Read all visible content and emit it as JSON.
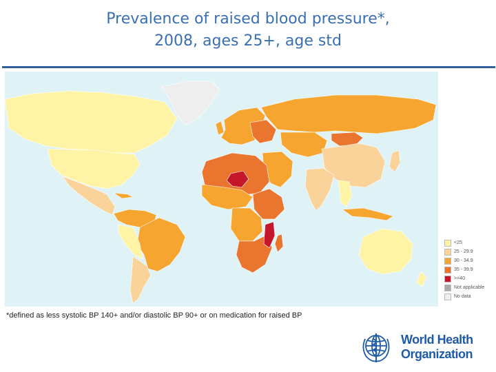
{
  "title": {
    "line1": "Prevalence of raised blood pressure*,",
    "line2": "2008, ages 25+, age std"
  },
  "map": {
    "colors": {
      "ocean": "#dff2f6",
      "land": "#fad39a",
      "level1": "#fff3a6",
      "level2": "#fad39a",
      "level3": "#f5a530",
      "level4": "#e9752f",
      "level5": "#c6162c",
      "not_applicable": "#a9a9a9",
      "no_data": "#eeeeee",
      "border": "#ffffff"
    }
  },
  "legend": {
    "items": [
      {
        "label": "<25",
        "color": "#fff3a6"
      },
      {
        "label": "25 - 29.9",
        "color": "#fad39a"
      },
      {
        "label": "30 - 34.9",
        "color": "#f5a530"
      },
      {
        "label": "35 - 39.9",
        "color": "#e9752f"
      },
      {
        "label": ">=40",
        "color": "#c6162c"
      },
      {
        "label": "Not applicable",
        "color": "#a9a9a9"
      },
      {
        "label": "No data",
        "color": "#eeeeee"
      }
    ]
  },
  "footnote": "*defined as less systolic BP 140+ and/or diastolic BP 90+ or on medication for raised BP",
  "logo": {
    "line1": "World Health",
    "line2": "Organization",
    "icon": "who-emblem-icon"
  }
}
